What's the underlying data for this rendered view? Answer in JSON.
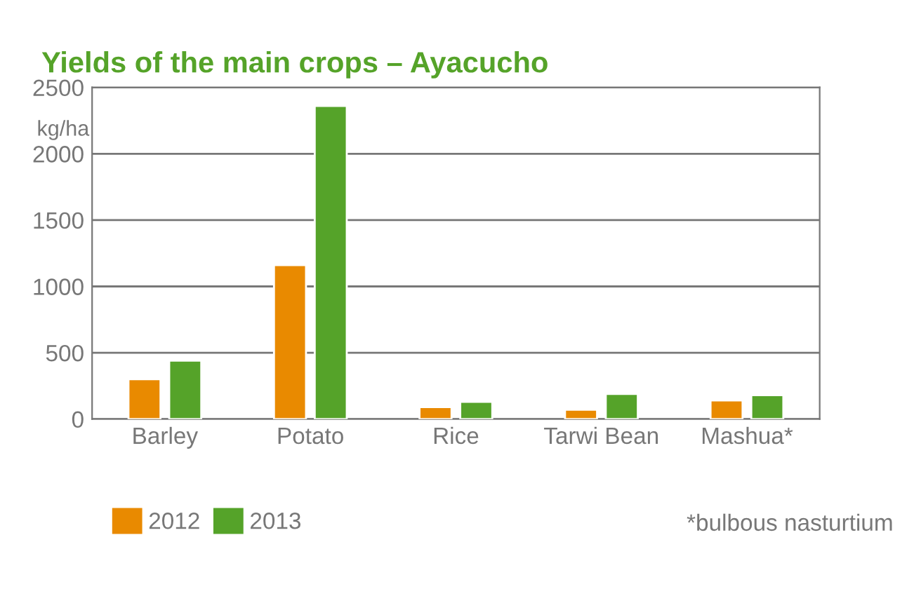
{
  "chart_data": {
    "type": "bar",
    "title": "Yields of the main crops – Ayacucho",
    "ylabel": "kg/ha",
    "categories": [
      "Barley",
      "Potato",
      "Rice",
      "Tarwi Bean",
      "Mashua*"
    ],
    "series": [
      {
        "name": "2012",
        "color": "#e98a00",
        "values": [
          300,
          1160,
          90,
          70,
          140
        ]
      },
      {
        "name": "2013",
        "color": "#55a329",
        "values": [
          440,
          2360,
          130,
          190,
          180
        ]
      }
    ],
    "ylim": [
      0,
      2500
    ],
    "yticks": [
      0,
      500,
      1000,
      1500,
      2000,
      2500
    ],
    "grid": "y",
    "legend": "bottom left",
    "annotations": [
      "*bulbous nasturtium"
    ]
  }
}
